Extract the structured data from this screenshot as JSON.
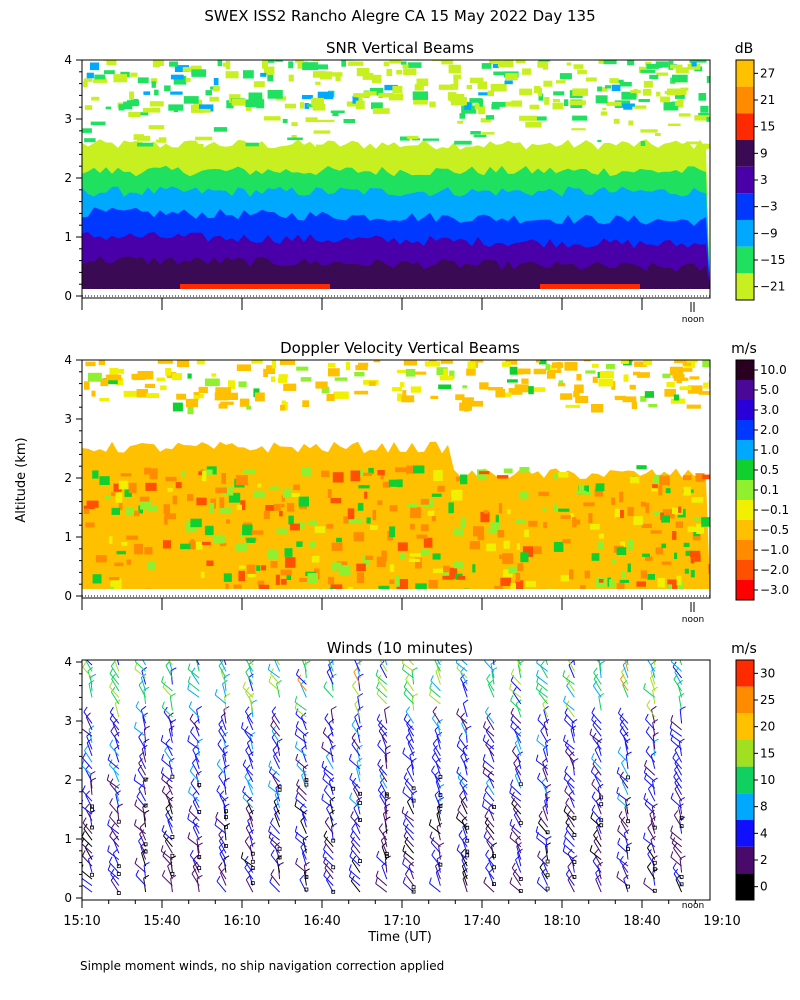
{
  "figure": {
    "title": "SWEX ISS2 Rancho Alegre CA  15 May 2022 Day 135",
    "y_axis_label": "Altitude (km)",
    "x_axis_label": "Time (UT)",
    "footnote": "Simple moment winds, no ship navigation correction applied",
    "noon_marker": "noon"
  },
  "chart_data": [
    {
      "type": "heatmap",
      "title": "SNR Vertical Beams",
      "colorbar_unit": "dB",
      "colorbar_labels": [
        "27",
        "21",
        "15",
        "9",
        "3",
        "−3",
        "−9",
        "−15",
        "−21"
      ],
      "colorbar_colors": [
        "#ffc000",
        "#ff8c00",
        "#ff2a00",
        "#3a0a54",
        "#4a00a8",
        "#0038ff",
        "#00a8ff",
        "#20e060",
        "#c8f020"
      ],
      "y_ticks": [
        "0",
        "1",
        "2",
        "3",
        "4"
      ],
      "ylim": [
        0,
        4
      ],
      "xlim": [
        "15:10",
        "19:10"
      ],
      "noon_time": "19:00",
      "snr_band_tops_km": [
        {
          "min_db": -21,
          "top": 2.45
        },
        {
          "min_db": -15,
          "top": 2.0
        },
        {
          "min_db": -9,
          "top": 1.65
        },
        {
          "min_db": -3,
          "top": 1.3
        },
        {
          "min_db": 3,
          "top": 0.9
        },
        {
          "min_db": 9,
          "top": 0.5
        }
      ],
      "upper_layer_km": [
        3.1,
        4.0
      ],
      "surface_echo_db": 15
    },
    {
      "type": "heatmap",
      "title": "Doppler Velocity Vertical Beams",
      "colorbar_unit": "m/s",
      "colorbar_labels": [
        "10.0",
        "5.0",
        "3.0",
        "2.0",
        "1.0",
        "0.5",
        "0.1",
        "−0.1",
        "−0.5",
        "−1.0",
        "−2.0",
        "−3.0"
      ],
      "colorbar_colors": [
        "#2a0020",
        "#4a0898",
        "#2a00d8",
        "#0038ff",
        "#00a8ff",
        "#10d030",
        "#90f030",
        "#f0f000",
        "#ffc000",
        "#ff8c00",
        "#ff5000",
        "#ff0000"
      ],
      "y_ticks": [
        "0",
        "1",
        "2",
        "3",
        "4"
      ],
      "ylim": [
        0,
        4
      ],
      "xlim": [
        "15:10",
        "19:10"
      ],
      "noon_time": "19:00",
      "dominant_velocity_ms": -0.5,
      "data_top_km": 2.4,
      "upper_layer_km": [
        3.1,
        4.0
      ]
    },
    {
      "type": "scatter",
      "title": "Winds (10 minutes)",
      "colorbar_unit": "m/s",
      "colorbar_labels": [
        "30",
        "25",
        "20",
        "15",
        "10",
        "8",
        "4",
        "2",
        "0"
      ],
      "colorbar_colors": [
        "#ff2a00",
        "#ff8c00",
        "#ffc000",
        "#a0e020",
        "#10d060",
        "#00a8ff",
        "#1010ff",
        "#4a0a6a",
        "#000000"
      ],
      "x_ticks": [
        "15:10",
        "15:40",
        "16:10",
        "16:40",
        "17:10",
        "17:40",
        "18:10",
        "18:40",
        "19:10"
      ],
      "y_ticks": [
        "0",
        "1",
        "2",
        "3",
        "4"
      ],
      "ylim": [
        0,
        4
      ],
      "xlim": [
        "15:10",
        "19:10"
      ],
      "noon_time": "19:00",
      "profile_interval_min": 10,
      "profile_count": 23,
      "dominant_direction_deg": 330,
      "typical_speed_ms": [
        2,
        8
      ],
      "upper_speed_ms": [
        8,
        30
      ]
    }
  ]
}
